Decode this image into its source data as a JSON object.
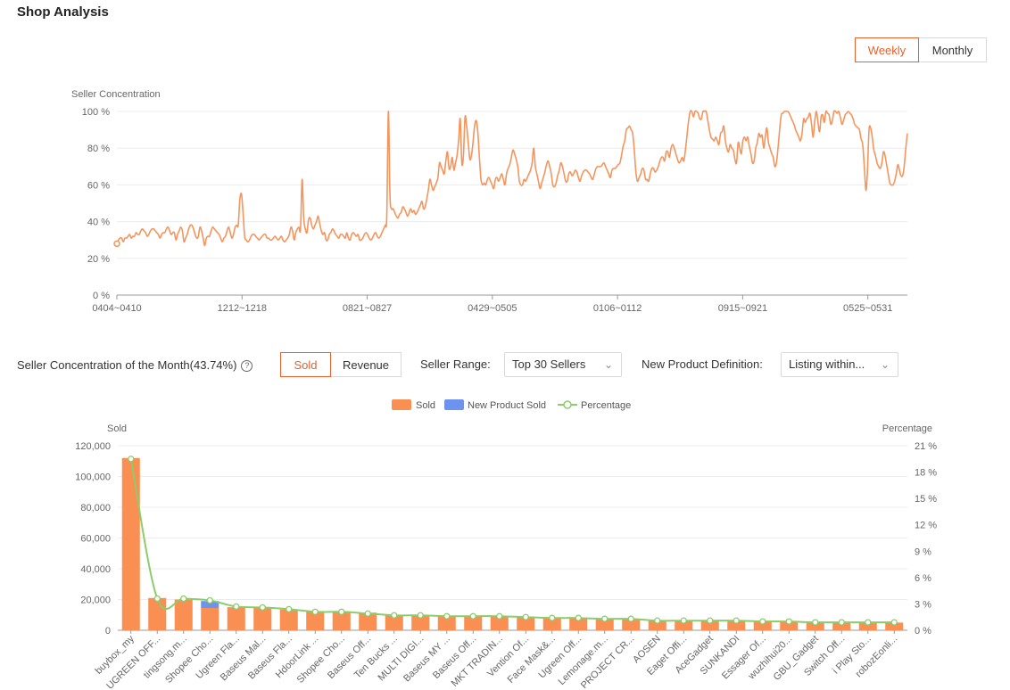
{
  "page": {
    "title": "Shop Analysis"
  },
  "period_toggle": {
    "weekly": "Weekly",
    "monthly": "Monthly",
    "active": "weekly"
  },
  "colors": {
    "accent": "#e8602c",
    "line": "#f4955e",
    "bar": "#f98f52",
    "new_bar": "#6e93ee",
    "pct_line": "#8ccc6a"
  },
  "controls": {
    "concentration_label": "Seller Concentration of the Month(43.74%)",
    "help_icon": "question-circle-icon",
    "metric_sold": "Sold",
    "metric_revenue": "Revenue",
    "range_label": "Seller Range:",
    "range_value": "Top 30 Sellers",
    "newprod_label": "New Product Definition:",
    "newprod_value": "Listing within..."
  },
  "chart_data": [
    {
      "type": "line",
      "title": "",
      "ylabel": "Seller Concentration",
      "ylim": [
        0,
        100
      ],
      "y_ticks": [
        "0 %",
        "20 %",
        "40 %",
        "60 %",
        "80 %",
        "100 %"
      ],
      "x_ticks": [
        "0404~0410",
        "1212~1218",
        "0821~0827",
        "0429~0505",
        "0106~0112",
        "0915~0921",
        "0525~0531"
      ],
      "series": [
        {
          "values": [
            28,
            30,
            31,
            31,
            29,
            31,
            31,
            32,
            33,
            31,
            32,
            32,
            34,
            33,
            33,
            35,
            36,
            35,
            34,
            32,
            33,
            35,
            36,
            36,
            35,
            34,
            33,
            31,
            33,
            34,
            34,
            36,
            37,
            35,
            33,
            34,
            34,
            30,
            33,
            35,
            37,
            35,
            29,
            31,
            33,
            36,
            38,
            38,
            36,
            33,
            31,
            32,
            37,
            35,
            31,
            27,
            31,
            32,
            32,
            35,
            37,
            36,
            35,
            34,
            33,
            31,
            29,
            31,
            32,
            35,
            37,
            34,
            31,
            33,
            37,
            38,
            38,
            52,
            55,
            45,
            32,
            30,
            29,
            30,
            32,
            33,
            33,
            32,
            31,
            30,
            31,
            32,
            33,
            33,
            31,
            31,
            30,
            30,
            31,
            32,
            31,
            30,
            31,
            32,
            30,
            29,
            30,
            31,
            33,
            37,
            35,
            30,
            34,
            36,
            37,
            36,
            63,
            42,
            36,
            34,
            41,
            42,
            38,
            36,
            38,
            40,
            43,
            39,
            35,
            33,
            34,
            30,
            30,
            33,
            34,
            36,
            35,
            33,
            32,
            31,
            33,
            33,
            32,
            31,
            34,
            31,
            30,
            33,
            34,
            33,
            32,
            33,
            30,
            30,
            31,
            33,
            34,
            33,
            31,
            30,
            31,
            33,
            34,
            32,
            31,
            32,
            34,
            36,
            38,
            43,
            100,
            54,
            47,
            47,
            45,
            43,
            42,
            44,
            45,
            48,
            47,
            45,
            43,
            45,
            47,
            45,
            46,
            44,
            45,
            47,
            49,
            51,
            47,
            48,
            52,
            57,
            63,
            60,
            57,
            59,
            61,
            64,
            72,
            70,
            68,
            66,
            73,
            78,
            69,
            70,
            75,
            68,
            72,
            76,
            84,
            96,
            72,
            76,
            97,
            92,
            83,
            74,
            76,
            83,
            92,
            95,
            89,
            75,
            63,
            60,
            61,
            60,
            63,
            64,
            62,
            60,
            58,
            63,
            64,
            62,
            64,
            66,
            63,
            60,
            66,
            69,
            71,
            75,
            79,
            77,
            74,
            70,
            62,
            60,
            60,
            63,
            62,
            64,
            66,
            68,
            72,
            80,
            70,
            66,
            62,
            58,
            61,
            64,
            67,
            71,
            73,
            70,
            66,
            60,
            59,
            61,
            65,
            68,
            72,
            70,
            66,
            62,
            62,
            66,
            67,
            65,
            66,
            68,
            67,
            64,
            62,
            65,
            67,
            68,
            68,
            67,
            66,
            64,
            63,
            66,
            69,
            70,
            70,
            70,
            71,
            72,
            70,
            68,
            66,
            64,
            68,
            69,
            69,
            70,
            71,
            72,
            76,
            81,
            84,
            90,
            91,
            92,
            90,
            88,
            79,
            67,
            62,
            64,
            66,
            69,
            68,
            63,
            63,
            62,
            66,
            69,
            69,
            67,
            68,
            70,
            73,
            75,
            75,
            73,
            78,
            78,
            75,
            80,
            82,
            80,
            77,
            74,
            72,
            73,
            75,
            73,
            79,
            87,
            95,
            100,
            100,
            97,
            100,
            100,
            99,
            96,
            96,
            100,
            100,
            100,
            95,
            90,
            86,
            85,
            84,
            86,
            84,
            82,
            88,
            89,
            92,
            84,
            80,
            78,
            82,
            80,
            79,
            74,
            72,
            83,
            80,
            77,
            84,
            86,
            84,
            86,
            81,
            77,
            72,
            73,
            80,
            83,
            88,
            86,
            87,
            80,
            86,
            91,
            83,
            80,
            77,
            75,
            70,
            72,
            80,
            90,
            98,
            99,
            100,
            100,
            100,
            99,
            97,
            95,
            93,
            90,
            88,
            86,
            84,
            88,
            96,
            94,
            96,
            97,
            99,
            93,
            86,
            95,
            100,
            94,
            89,
            97,
            98,
            94,
            100,
            99,
            98,
            93,
            95,
            100,
            100,
            99,
            100,
            97,
            93,
            95,
            98,
            99,
            100,
            99,
            98,
            96,
            93,
            92,
            91,
            90,
            85,
            82,
            70,
            57,
            68,
            90,
            91,
            86,
            79,
            76,
            72,
            70,
            69,
            72,
            78,
            76,
            71,
            66,
            61,
            60,
            60,
            62,
            66,
            71,
            68,
            65,
            65,
            70,
            80,
            88
          ]
        }
      ]
    },
    {
      "type": "bar",
      "title": "",
      "ylabel": "Sold",
      "y2label": "Percentage",
      "ylim": [
        0,
        120000
      ],
      "y2lim": [
        0,
        21
      ],
      "y_ticks": [
        "0",
        "20,000",
        "40,000",
        "60,000",
        "80,000",
        "100,000",
        "120,000"
      ],
      "y2_ticks": [
        "0 %",
        "3 %",
        "6 %",
        "9 %",
        "12 %",
        "15 %",
        "18 %",
        "21 %"
      ],
      "legend": [
        "Sold",
        "New Product Sold",
        "Percentage"
      ],
      "legend_placement": "top-center",
      "categories": [
        "buybox_my",
        "UGREEN OFF...",
        "tingsong.m...",
        "Shopee Cho...",
        "Ugreen Fla...",
        "Baseus Mal...",
        "Baseus Fla...",
        "HdoorLink ...",
        "Shopee Cho...",
        "Baseus Off...",
        "Ten Bucks ...",
        "MULTI DIGI...",
        "Baseus MY ...",
        "Baseus Off...",
        "MKT TRADIN...",
        "Vention Of...",
        "Face Mask&...",
        "Ugreen Off...",
        "Lemonage.m...",
        "PROJECT CR...",
        "AOSEN",
        "Eaget Offi...",
        "AceGadget",
        "SUNKANDI",
        "Essager Of...",
        "wuzhihui20...",
        "GBU_Gadget",
        "Switch Off...",
        "i Play Sto...",
        "robozEonli..."
      ],
      "series": [
        {
          "name": "Sold",
          "values": [
            112000,
            21000,
            20000,
            14500,
            15000,
            14500,
            13500,
            12500,
            12000,
            11500,
            10000,
            9500,
            9500,
            9000,
            9000,
            8500,
            8000,
            8000,
            7500,
            7500,
            6500,
            6500,
            6000,
            6000,
            5500,
            5500,
            5000,
            5000,
            5000,
            5000
          ]
        },
        {
          "name": "New Product Sold",
          "values": [
            0,
            0,
            0,
            4500,
            0,
            0,
            0,
            0,
            0,
            0,
            0,
            0,
            0,
            0,
            0,
            0,
            0,
            0,
            0,
            0,
            0,
            0,
            0,
            0,
            0,
            0,
            0,
            0,
            0,
            0
          ]
        },
        {
          "name": "Percentage",
          "values": [
            19.5,
            3.6,
            3.6,
            3.4,
            2.7,
            2.6,
            2.4,
            2.1,
            2.1,
            1.9,
            1.7,
            1.7,
            1.6,
            1.6,
            1.6,
            1.5,
            1.4,
            1.4,
            1.3,
            1.3,
            1.1,
            1.1,
            1.1,
            1.1,
            1.0,
            1.0,
            0.9,
            0.9,
            0.9,
            0.9
          ]
        }
      ]
    }
  ]
}
